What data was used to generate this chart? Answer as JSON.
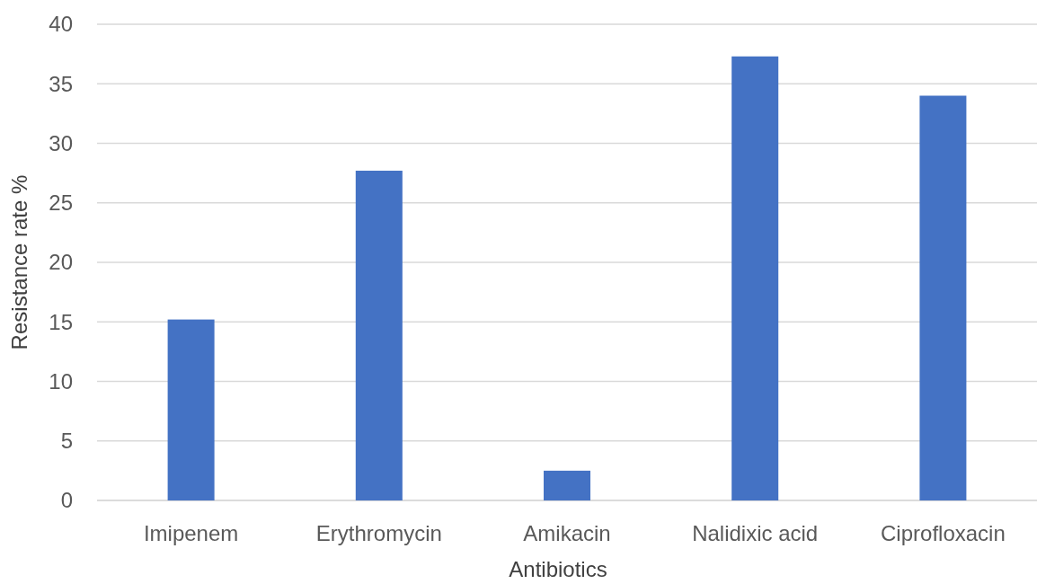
{
  "chart_data": {
    "type": "bar",
    "xlabel": "Antibiotics",
    "ylabel": "Resistance rate %",
    "categories": [
      "Imipenem",
      "Erythromycin",
      "Amikacin",
      "Nalidixic acid",
      "Ciprofloxacin"
    ],
    "values": [
      15.2,
      27.7,
      2.5,
      37.3,
      34.0
    ],
    "color": "#4472c4",
    "ylim": [
      0,
      40
    ],
    "yticks": [
      0,
      5,
      10,
      15,
      20,
      25,
      30,
      35,
      40
    ],
    "grid": "y"
  }
}
